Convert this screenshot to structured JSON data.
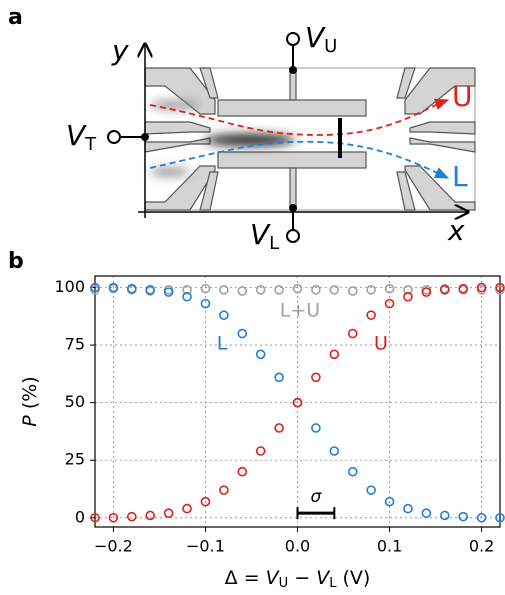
{
  "panel_a": {
    "label": "a",
    "y_axis": "y",
    "x_axis": "x",
    "terminal_top": {
      "symbol": "V",
      "sub": "U"
    },
    "terminal_bottom": {
      "symbol": "V",
      "sub": "L"
    },
    "terminal_left": {
      "symbol": "V",
      "sub": "T"
    },
    "output_upper": "U",
    "output_lower": "L"
  },
  "chart_data": {
    "type": "scatter",
    "panel_label": "b",
    "xlabel": [
      "Δ = ",
      "V",
      "U",
      " − ",
      "V",
      "L",
      " (V)"
    ],
    "ylabel": [
      "P",
      " (%)"
    ],
    "x": [
      -0.22,
      -0.2,
      -0.18,
      -0.16,
      -0.14,
      -0.12,
      -0.1,
      -0.08,
      -0.06,
      -0.04,
      -0.02,
      0,
      0.02,
      0.04,
      0.06,
      0.08,
      0.1,
      0.12,
      0.14,
      0.16,
      0.18,
      0.2,
      0.22
    ],
    "series": [
      {
        "name": "L+U",
        "color": "#a0a0a0",
        "values": [
          99,
          99.5,
          99,
          98.5,
          99,
          99,
          99.5,
          99,
          98.5,
          99,
          99,
          99.5,
          99,
          99,
          98.5,
          99,
          99.5,
          99,
          99,
          99.5,
          99,
          99,
          99
        ]
      },
      {
        "name": "L",
        "color": "#1f7fd8",
        "values": [
          100,
          100,
          99.5,
          99,
          98,
          96,
          93,
          88,
          80,
          71,
          61,
          50,
          39,
          29,
          20,
          12,
          7,
          4,
          2,
          1,
          0.5,
          0,
          0
        ]
      },
      {
        "name": "U",
        "color": "#e0201b",
        "values": [
          0,
          0,
          0.5,
          1,
          2,
          4,
          7,
          12,
          20,
          29,
          39,
          50,
          61,
          71,
          80,
          88,
          93,
          96,
          98,
          99,
          99.5,
          100,
          100
        ]
      }
    ],
    "sigma": {
      "label": "σ",
      "x": [
        0,
        0.04
      ],
      "y": 2
    },
    "xlim": [
      -0.22,
      0.22
    ],
    "xticks": [
      {
        "value": -0.2,
        "label": "−0.2"
      },
      {
        "value": -0.1,
        "label": "−0.1"
      },
      {
        "value": 0,
        "label": "0.0"
      },
      0.1,
      0.2
    ],
    "ylim": [
      -4,
      105
    ],
    "yticks": [
      0,
      25,
      50,
      75,
      100
    ],
    "grid": true
  }
}
